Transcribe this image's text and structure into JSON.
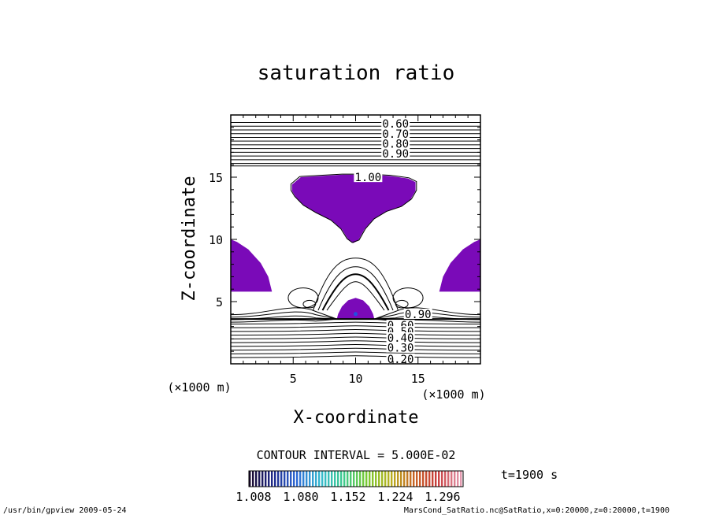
{
  "chart_data": {
    "type": "contour",
    "title": "saturation ratio",
    "xlabel": "X-coordinate",
    "ylabel": "Z-coordinate",
    "x_units": "(×1000 m)",
    "y_units": "(×1000 m)",
    "xlim": [
      0,
      20
    ],
    "ylim": [
      0,
      20
    ],
    "x_ticks": [
      5,
      10,
      15
    ],
    "y_ticks": [
      5,
      10,
      15
    ],
    "contour_interval_text": "CONTOUR INTERVAL = 5.000E-02",
    "contour_labels": [
      {
        "text": "0.60",
        "x": 13.2,
        "z": 19.1
      },
      {
        "text": "0.70",
        "x": 13.2,
        "z": 18.3
      },
      {
        "text": "0.80",
        "x": 13.2,
        "z": 17.5
      },
      {
        "text": "0.90",
        "x": 13.2,
        "z": 16.7
      },
      {
        "text": "1.00",
        "x": 11.0,
        "z": 14.8
      },
      {
        "text": "0.90",
        "x": 15.0,
        "z": 3.8
      },
      {
        "text": "0.60",
        "x": 13.6,
        "z": 2.9
      },
      {
        "text": "0.50",
        "x": 13.6,
        "z": 2.4
      },
      {
        "text": "0.40",
        "x": 13.6,
        "z": 1.9
      },
      {
        "text": "0.30",
        "x": 13.6,
        "z": 1.1
      },
      {
        "text": "0.20",
        "x": 13.6,
        "z": 0.2
      }
    ],
    "shading": {
      "threshold": 1.008,
      "colorbar_ticks": [
        "1.008",
        "1.080",
        "1.152",
        "1.224",
        "1.296"
      ],
      "colors": [
        "#1a0a2e",
        "#1f2a8a",
        "#2f6ad6",
        "#36b8d0",
        "#3cc98c",
        "#79c930",
        "#b8b020",
        "#c86424",
        "#c83c3c",
        "#e49ab0"
      ],
      "fill_color": "#7a0ab8"
    },
    "time_label": "t=1900 s",
    "footer_left": "/usr/bin/gpview   2009-05-24",
    "footer_right": "MarsCond_SatRatio.nc@SatRatio,x=0:20000,z=0:20000,t=1900"
  }
}
